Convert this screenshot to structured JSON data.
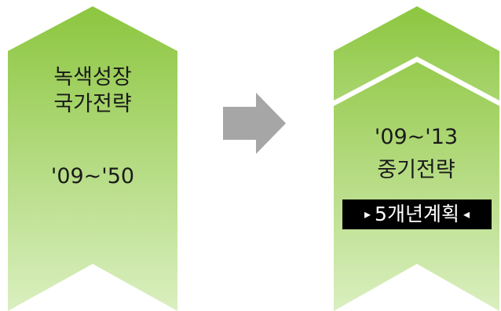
{
  "left_block": {
    "line1": "녹색성장",
    "line2": "국가전략",
    "period": "'09~'50"
  },
  "arrow": {
    "icon": "right-arrow-icon",
    "color": "#a6a6a6"
  },
  "right_block": {
    "period": "'09~'13",
    "title": "중기전략",
    "badge": {
      "left_marker": "▸",
      "label": "5개년계획",
      "right_marker": "◂"
    }
  },
  "colors": {
    "green_top": "#8cc63f",
    "green_bottom": "#daefc0",
    "badge_bg": "#000000",
    "badge_text": "#ffffff"
  }
}
